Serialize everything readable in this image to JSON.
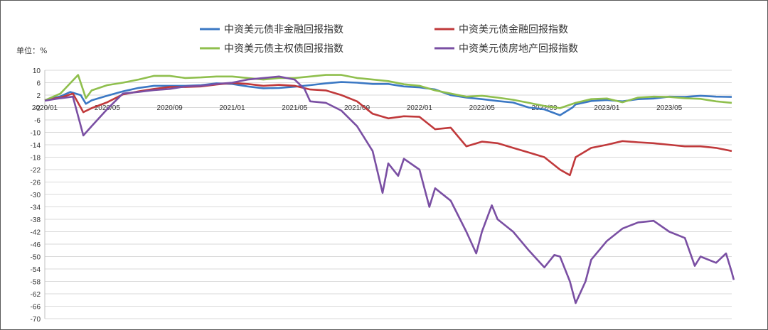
{
  "chart_data": {
    "type": "line",
    "title": "",
    "unit_label": "单位：%",
    "xlabel": "",
    "ylabel": "",
    "ylim": [
      -70,
      10
    ],
    "y_ticks": [
      10,
      6,
      2,
      -2,
      -6,
      -10,
      -14,
      -18,
      -22,
      -26,
      -30,
      -34,
      -38,
      -42,
      -46,
      -50,
      -54,
      -58,
      -62,
      -66,
      -70
    ],
    "x_ticks": [
      "2020/01",
      "2020/05",
      "2020/09",
      "2021/01",
      "2021/05",
      "2021/09",
      "2022/01",
      "2022/05",
      "2022/09",
      "2023/01",
      "2023/05"
    ],
    "x_range": [
      "2020/01",
      "2023/09"
    ],
    "grid": "horizontal",
    "legend_position": "top",
    "series": [
      {
        "name": "中资美元债非金融回报指数",
        "color": "#3b78c4",
        "points": [
          [
            "2020/01",
            0.3
          ],
          [
            "2020/02",
            1.6
          ],
          [
            "2020/02/20",
            3.0
          ],
          [
            "2020/03/10",
            2.0
          ],
          [
            "2020/03/20",
            -0.8
          ],
          [
            "2020/04",
            0.3
          ],
          [
            "2020/05",
            1.8
          ],
          [
            "2020/06",
            3.2
          ],
          [
            "2020/07",
            4.3
          ],
          [
            "2020/08",
            5.0
          ],
          [
            "2020/09",
            5.0
          ],
          [
            "2020/10",
            5.0
          ],
          [
            "2020/11",
            5.2
          ],
          [
            "2020/12",
            5.8
          ],
          [
            "2021/01",
            5.6
          ],
          [
            "2021/02",
            4.8
          ],
          [
            "2021/03",
            4.2
          ],
          [
            "2021/04",
            4.3
          ],
          [
            "2021/05",
            4.7
          ],
          [
            "2021/06",
            5.2
          ],
          [
            "2021/07",
            5.8
          ],
          [
            "2021/08",
            6.2
          ],
          [
            "2021/09",
            6.0
          ],
          [
            "2021/10",
            5.6
          ],
          [
            "2021/11",
            5.6
          ],
          [
            "2021/12",
            4.8
          ],
          [
            "2022/01",
            4.5
          ],
          [
            "2022/02",
            3.8
          ],
          [
            "2022/03",
            2.0
          ],
          [
            "2022/04",
            1.2
          ],
          [
            "2022/05",
            0.7
          ],
          [
            "2022/06",
            0.1
          ],
          [
            "2022/07",
            -0.4
          ],
          [
            "2022/08",
            -2.0
          ],
          [
            "2022/09",
            -2.6
          ],
          [
            "2022/10",
            -4.5
          ],
          [
            "2022/10/25",
            -2.0
          ],
          [
            "2022/11",
            -1.0
          ],
          [
            "2022/12",
            0.1
          ],
          [
            "2023/01",
            0.4
          ],
          [
            "2023/02",
            0.0
          ],
          [
            "2023/03",
            0.7
          ],
          [
            "2023/04",
            0.9
          ],
          [
            "2023/05",
            1.5
          ],
          [
            "2023/06",
            1.4
          ],
          [
            "2023/07",
            1.8
          ],
          [
            "2023/08",
            1.5
          ],
          [
            "2023/09",
            1.4
          ]
        ]
      },
      {
        "name": "中资美元债金融回报指数",
        "color": "#c0393b",
        "points": [
          [
            "2020/01",
            0.4
          ],
          [
            "2020/02",
            1.2
          ],
          [
            "2020/02/25",
            2.5
          ],
          [
            "2020/03/15",
            -3.5
          ],
          [
            "2020/04",
            -2.2
          ],
          [
            "2020/05",
            -0.3
          ],
          [
            "2020/06",
            2.2
          ],
          [
            "2020/07",
            3.2
          ],
          [
            "2020/08",
            4.0
          ],
          [
            "2020/09",
            4.6
          ],
          [
            "2020/10",
            4.6
          ],
          [
            "2020/11",
            4.8
          ],
          [
            "2020/12",
            5.4
          ],
          [
            "2021/01",
            5.9
          ],
          [
            "2021/02",
            5.6
          ],
          [
            "2021/03",
            5.0
          ],
          [
            "2021/04",
            5.3
          ],
          [
            "2021/05",
            5.0
          ],
          [
            "2021/06",
            3.8
          ],
          [
            "2021/07",
            3.5
          ],
          [
            "2021/08",
            2.0
          ],
          [
            "2021/09",
            0.0
          ],
          [
            "2021/10",
            -4.0
          ],
          [
            "2021/11",
            -5.5
          ],
          [
            "2021/12",
            -4.8
          ],
          [
            "2022/01",
            -5.0
          ],
          [
            "2022/02",
            -9.0
          ],
          [
            "2022/03",
            -8.5
          ],
          [
            "2022/04",
            -14.5
          ],
          [
            "2022/05",
            -13.0
          ],
          [
            "2022/06",
            -13.5
          ],
          [
            "2022/07",
            -15.0
          ],
          [
            "2022/08",
            -16.5
          ],
          [
            "2022/09",
            -18.0
          ],
          [
            "2022/10",
            -22.0
          ],
          [
            "2022/10/20",
            -23.8
          ],
          [
            "2022/11",
            -18.0
          ],
          [
            "2022/12",
            -15.0
          ],
          [
            "2023/01",
            -14.0
          ],
          [
            "2023/02",
            -12.8
          ],
          [
            "2023/03",
            -13.2
          ],
          [
            "2023/04",
            -13.5
          ],
          [
            "2023/05",
            -14.0
          ],
          [
            "2023/06",
            -14.5
          ],
          [
            "2023/07",
            -14.5
          ],
          [
            "2023/08",
            -15.0
          ],
          [
            "2023/09",
            -16.0
          ]
        ]
      },
      {
        "name": "中资美元债主权债回报指数",
        "color": "#8fbf4d",
        "points": [
          [
            "2020/01",
            0.3
          ],
          [
            "2020/02",
            2.5
          ],
          [
            "2020/03/05",
            8.5
          ],
          [
            "2020/03/20",
            1.0
          ],
          [
            "2020/04",
            3.5
          ],
          [
            "2020/05",
            5.2
          ],
          [
            "2020/06",
            6.0
          ],
          [
            "2020/07",
            7.0
          ],
          [
            "2020/08",
            8.2
          ],
          [
            "2020/09",
            8.2
          ],
          [
            "2020/10",
            7.5
          ],
          [
            "2020/11",
            7.7
          ],
          [
            "2020/12",
            8.0
          ],
          [
            "2021/01",
            8.0
          ],
          [
            "2021/02",
            7.5
          ],
          [
            "2021/03",
            7.0
          ],
          [
            "2021/04",
            7.5
          ],
          [
            "2021/05",
            7.5
          ],
          [
            "2021/06",
            8.0
          ],
          [
            "2021/07",
            8.5
          ],
          [
            "2021/08",
            8.5
          ],
          [
            "2021/09",
            7.5
          ],
          [
            "2021/10",
            7.0
          ],
          [
            "2021/11",
            6.5
          ],
          [
            "2021/12",
            5.5
          ],
          [
            "2022/01",
            5.0
          ],
          [
            "2022/02",
            3.5
          ],
          [
            "2022/03",
            2.5
          ],
          [
            "2022/04",
            1.5
          ],
          [
            "2022/05",
            1.8
          ],
          [
            "2022/06",
            1.2
          ],
          [
            "2022/07",
            0.5
          ],
          [
            "2022/08",
            -0.5
          ],
          [
            "2022/09",
            -1.5
          ],
          [
            "2022/10",
            -2.2
          ],
          [
            "2022/11",
            -0.5
          ],
          [
            "2022/12",
            0.7
          ],
          [
            "2023/01",
            0.9
          ],
          [
            "2023/02",
            -0.3
          ],
          [
            "2023/03",
            1.2
          ],
          [
            "2023/04",
            1.5
          ],
          [
            "2023/05",
            1.4
          ],
          [
            "2023/06",
            1.0
          ],
          [
            "2023/07",
            0.8
          ],
          [
            "2023/08",
            0.0
          ],
          [
            "2023/09",
            -0.5
          ]
        ]
      },
      {
        "name": "中资美元债房地产回报指数",
        "color": "#7a4fa3",
        "points": [
          [
            "2020/01",
            0.2
          ],
          [
            "2020/02",
            1.0
          ],
          [
            "2020/02/25",
            1.5
          ],
          [
            "2020/03/15",
            -11.0
          ],
          [
            "2020/04",
            -8.0
          ],
          [
            "2020/05",
            -2.5
          ],
          [
            "2020/06",
            2.5
          ],
          [
            "2020/07",
            3.0
          ],
          [
            "2020/08",
            3.6
          ],
          [
            "2020/09",
            4.0
          ],
          [
            "2020/10",
            4.8
          ],
          [
            "2020/11",
            5.0
          ],
          [
            "2020/12",
            5.6
          ],
          [
            "2021/01",
            6.0
          ],
          [
            "2021/02",
            7.0
          ],
          [
            "2021/03",
            7.5
          ],
          [
            "2021/04",
            8.0
          ],
          [
            "2021/05",
            7.0
          ],
          [
            "2021/05/20",
            4.0
          ],
          [
            "2021/06",
            0.0
          ],
          [
            "2021/07",
            -0.5
          ],
          [
            "2021/08",
            -3.0
          ],
          [
            "2021/09",
            -8.0
          ],
          [
            "2021/10",
            -16.0
          ],
          [
            "2021/10/20",
            -29.5
          ],
          [
            "2021/11",
            -20.0
          ],
          [
            "2021/11/20",
            -24.0
          ],
          [
            "2021/12",
            -18.5
          ],
          [
            "2022/01",
            -22.0
          ],
          [
            "2022/01/20",
            -34.0
          ],
          [
            "2022/02",
            -28.0
          ],
          [
            "2022/03",
            -32.0
          ],
          [
            "2022/04",
            -42.0
          ],
          [
            "2022/04/20",
            -49.0
          ],
          [
            "2022/05",
            -42.0
          ],
          [
            "2022/05/20",
            -33.5
          ],
          [
            "2022/06",
            -38.0
          ],
          [
            "2022/07",
            -42.0
          ],
          [
            "2022/08",
            -48.0
          ],
          [
            "2022/09",
            -53.5
          ],
          [
            "2022/09/20",
            -49.5
          ],
          [
            "2022/10",
            -50.0
          ],
          [
            "2022/10/20",
            -58.0
          ],
          [
            "2022/11",
            -65.0
          ],
          [
            "2022/11/20",
            -58.0
          ],
          [
            "2022/12",
            -51.0
          ],
          [
            "2023/01",
            -45.0
          ],
          [
            "2023/02",
            -41.0
          ],
          [
            "2023/03",
            -39.0
          ],
          [
            "2023/04",
            -38.5
          ],
          [
            "2023/05",
            -42.0
          ],
          [
            "2023/06",
            -44.0
          ],
          [
            "2023/06/20",
            -53.0
          ],
          [
            "2023/07",
            -50.0
          ],
          [
            "2023/08",
            -52.0
          ],
          [
            "2023/08/20",
            -49.0
          ],
          [
            "2023/09/05",
            -57.5
          ],
          [
            "2023/09",
            -55.0
          ]
        ]
      }
    ]
  }
}
